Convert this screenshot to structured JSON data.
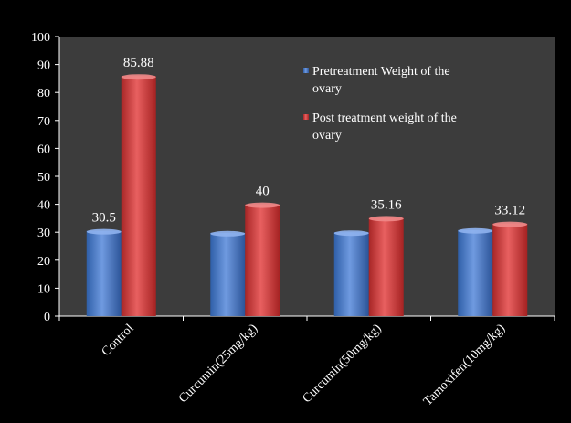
{
  "chart_data": {
    "type": "bar",
    "categories": [
      "Control",
      "Curcumin(25mg/kg)",
      "Curcumin(50mg/kg)",
      "Tamoxifen(10mg/kg)"
    ],
    "series": [
      {
        "name": "Pretreatment Weight of the ovary",
        "legend_lines": [
          "Pretreatment Weight of the",
          "ovary"
        ],
        "color": "#4a7fd0",
        "values": [
          30.5,
          29.8,
          30.0,
          30.8
        ],
        "data_labels": [
          "30.5",
          "",
          "",
          ""
        ]
      },
      {
        "name": "Post treatment weight of the ovary",
        "legend_lines": [
          "Post treatment weight of the",
          "ovary"
        ],
        "color": "#d23c3c",
        "values": [
          85.88,
          40,
          35.16,
          33.12
        ],
        "data_labels": [
          "85.88",
          "40",
          "35.16",
          "33.12"
        ]
      }
    ],
    "ylim": [
      0,
      100
    ],
    "yticks": [
      0,
      10,
      20,
      30,
      40,
      50,
      60,
      70,
      80,
      90,
      100
    ],
    "grid": false,
    "legend_position": "top-right",
    "title": "",
    "xlabel": "",
    "ylabel": ""
  },
  "colors": {
    "background": "#000000",
    "plot_area": "#3c3c3c",
    "axis": "#ffffff",
    "text": "#ffffff"
  }
}
